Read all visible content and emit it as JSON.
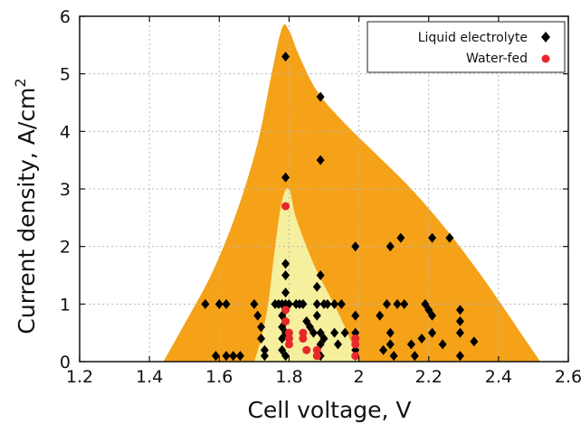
{
  "chart_data": {
    "type": "scatter",
    "xlabel": "Cell voltage, V",
    "ylabel": "Current density, A/cm",
    "ylabel_superscript": "2",
    "xlim": [
      1.2,
      2.6
    ],
    "ylim": [
      0,
      6
    ],
    "xticks": [
      1.2,
      1.4,
      1.6,
      1.8,
      2.0,
      2.2,
      2.4,
      2.6
    ],
    "xtick_labels": [
      "1.2",
      "1.4",
      "1.6",
      "1.8",
      "2",
      "2.2",
      "2.4",
      "2.6"
    ],
    "yticks": [
      0,
      1,
      2,
      3,
      4,
      5,
      6
    ],
    "ytick_labels": [
      "0",
      "1",
      "2",
      "3",
      "4",
      "5",
      "6"
    ],
    "grid": true,
    "legend_position": "top-right",
    "series": [
      {
        "name": "Liquid electrolyte",
        "marker": "diamond",
        "color": "#000000",
        "points": [
          [
            1.56,
            1.0
          ],
          [
            1.59,
            0.1
          ],
          [
            1.6,
            1.0
          ],
          [
            1.62,
            1.0
          ],
          [
            1.62,
            0.1
          ],
          [
            1.64,
            0.1
          ],
          [
            1.66,
            0.1
          ],
          [
            1.7,
            1.0
          ],
          [
            1.71,
            0.8
          ],
          [
            1.72,
            0.6
          ],
          [
            1.72,
            0.4
          ],
          [
            1.73,
            0.2
          ],
          [
            1.73,
            0.1
          ],
          [
            1.76,
            1.0
          ],
          [
            1.77,
            1.0
          ],
          [
            1.78,
            1.0
          ],
          [
            1.78,
            0.8
          ],
          [
            1.78,
            0.6
          ],
          [
            1.78,
            0.4
          ],
          [
            1.78,
            0.2
          ],
          [
            1.79,
            5.3
          ],
          [
            1.79,
            3.2
          ],
          [
            1.79,
            1.7
          ],
          [
            1.79,
            1.5
          ],
          [
            1.79,
            1.2
          ],
          [
            1.79,
            1.0
          ],
          [
            1.79,
            0.9
          ],
          [
            1.79,
            0.7
          ],
          [
            1.79,
            0.5
          ],
          [
            1.79,
            0.1
          ],
          [
            1.8,
            1.0
          ],
          [
            1.82,
            1.0
          ],
          [
            1.83,
            1.0
          ],
          [
            1.84,
            1.0
          ],
          [
            1.85,
            0.7
          ],
          [
            1.86,
            0.6
          ],
          [
            1.87,
            0.5
          ],
          [
            1.88,
            1.3
          ],
          [
            1.88,
            1.0
          ],
          [
            1.88,
            0.8
          ],
          [
            1.89,
            4.6
          ],
          [
            1.89,
            3.5
          ],
          [
            1.89,
            1.5
          ],
          [
            1.89,
            0.5
          ],
          [
            1.89,
            0.3
          ],
          [
            1.89,
            0.1
          ],
          [
            1.9,
            1.0
          ],
          [
            1.9,
            0.4
          ],
          [
            1.91,
            1.0
          ],
          [
            1.93,
            1.0
          ],
          [
            1.93,
            0.5
          ],
          [
            1.94,
            0.3
          ],
          [
            1.95,
            1.0
          ],
          [
            1.96,
            0.5
          ],
          [
            1.99,
            2.0
          ],
          [
            1.99,
            0.8
          ],
          [
            1.99,
            0.5
          ],
          [
            1.99,
            0.2
          ],
          [
            1.99,
            0.1
          ],
          [
            2.06,
            0.8
          ],
          [
            2.07,
            0.2
          ],
          [
            2.08,
            1.0
          ],
          [
            2.09,
            0.5
          ],
          [
            2.09,
            0.3
          ],
          [
            2.09,
            2.0
          ],
          [
            2.1,
            0.1
          ],
          [
            2.11,
            1.0
          ],
          [
            2.12,
            2.15
          ],
          [
            2.13,
            1.0
          ],
          [
            2.15,
            0.3
          ],
          [
            2.16,
            0.1
          ],
          [
            2.18,
            0.4
          ],
          [
            2.19,
            1.0
          ],
          [
            2.2,
            0.9
          ],
          [
            2.21,
            0.8
          ],
          [
            2.21,
            0.5
          ],
          [
            2.21,
            2.15
          ],
          [
            2.24,
            0.3
          ],
          [
            2.26,
            2.15
          ],
          [
            2.29,
            0.9
          ],
          [
            2.29,
            0.7
          ],
          [
            2.29,
            0.5
          ],
          [
            2.29,
            0.1
          ],
          [
            2.33,
            0.35
          ]
        ]
      },
      {
        "name": "Water-fed",
        "marker": "circle",
        "color": "#e8272b",
        "points": [
          [
            1.79,
            2.7
          ],
          [
            1.79,
            0.9
          ],
          [
            1.79,
            0.7
          ],
          [
            1.8,
            0.5
          ],
          [
            1.8,
            0.4
          ],
          [
            1.8,
            0.3
          ],
          [
            1.84,
            0.5
          ],
          [
            1.84,
            0.4
          ],
          [
            1.85,
            0.2
          ],
          [
            1.88,
            0.2
          ],
          [
            1.88,
            0.1
          ],
          [
            1.99,
            0.4
          ],
          [
            1.99,
            0.3
          ],
          [
            1.99,
            0.1
          ]
        ]
      }
    ],
    "regions": [
      {
        "color": "#f5a219",
        "outline": [
          [
            1.44,
            0
          ],
          [
            1.5,
            0.65
          ],
          [
            1.58,
            1.55
          ],
          [
            1.65,
            2.6
          ],
          [
            1.71,
            3.8
          ],
          [
            1.75,
            5.0
          ],
          [
            1.78,
            5.8
          ],
          [
            1.8,
            5.75
          ],
          [
            1.83,
            5.3
          ],
          [
            1.88,
            4.7
          ],
          [
            1.95,
            4.2
          ],
          [
            2.05,
            3.6
          ],
          [
            2.15,
            3.0
          ],
          [
            2.25,
            2.3
          ],
          [
            2.35,
            1.5
          ],
          [
            2.43,
            0.8
          ],
          [
            2.48,
            0.35
          ],
          [
            2.52,
            0
          ]
        ]
      },
      {
        "color": "#f5ef9e",
        "outline": [
          [
            1.7,
            0
          ],
          [
            1.72,
            0.4
          ],
          [
            1.74,
            1.0
          ],
          [
            1.76,
            2.0
          ],
          [
            1.78,
            2.8
          ],
          [
            1.8,
            3.0
          ],
          [
            1.82,
            2.5
          ],
          [
            1.87,
            1.7
          ],
          [
            1.92,
            1.1
          ],
          [
            1.96,
            0.6
          ],
          [
            2.0,
            0
          ]
        ]
      }
    ]
  }
}
